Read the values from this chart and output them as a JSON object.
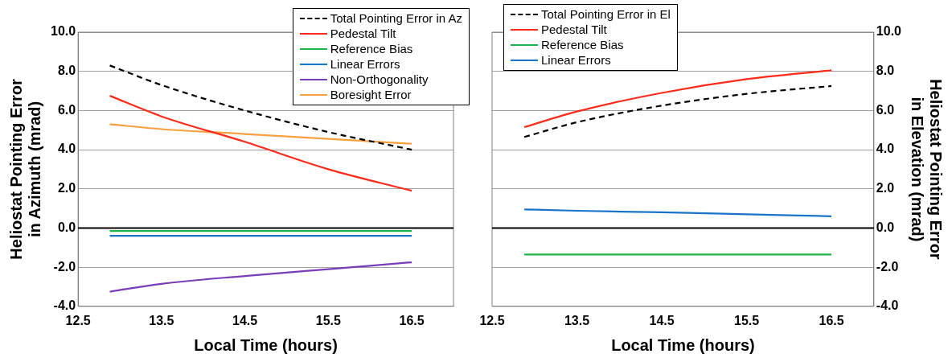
{
  "chart_data": [
    {
      "type": "line",
      "xlabel": "Local Time (hours)",
      "ylabel": "Heliostat Pointing Error\nin Azimuth (mrad)",
      "x": [
        12.88,
        13.5,
        14.5,
        15.5,
        16.5
      ],
      "series": [
        {
          "name": "Total Pointing Error in Az",
          "color": "#000000",
          "line_style": "dashed",
          "values": [
            8.3,
            7.3,
            6.0,
            4.9,
            4.0
          ]
        },
        {
          "name": "Pedestal Tilt",
          "color": "#ff2a1a",
          "values": [
            6.75,
            5.7,
            4.4,
            3.0,
            1.9
          ]
        },
        {
          "name": "Reference Bias",
          "color": "#1db34a",
          "values": [
            -0.15,
            -0.15,
            -0.15,
            -0.15,
            -0.15
          ]
        },
        {
          "name": "Linear Errors",
          "color": "#1a75c9",
          "values": [
            -0.4,
            -0.4,
            -0.4,
            -0.4,
            -0.4
          ]
        },
        {
          "name": "Non-Orthogonality",
          "color": "#7a3db8",
          "values": [
            -3.25,
            -2.85,
            -2.45,
            -2.1,
            -1.75
          ]
        },
        {
          "name": "Boresight Error",
          "color": "#f7a040",
          "values": [
            5.3,
            5.05,
            4.8,
            4.55,
            4.3
          ]
        }
      ],
      "xlim": [
        12.5,
        17.0
      ],
      "xticks": [
        12.5,
        13.5,
        14.5,
        15.5,
        16.5
      ],
      "ylim": [
        -4,
        10
      ],
      "yticks": [
        {
          "value": -4,
          "label": "-4.0"
        },
        {
          "value": -2,
          "label": "-2.0"
        },
        {
          "value": 0,
          "label": "0.0"
        },
        {
          "value": 2,
          "label": "2.0"
        },
        {
          "value": 4,
          "label": "4.0"
        },
        {
          "value": 6,
          "label": "6.0"
        },
        {
          "value": 8,
          "label": "8.0"
        },
        {
          "value": 10,
          "label": "10.0"
        }
      ],
      "ref_lines": [
        {
          "axis": "y",
          "value": 0,
          "color": "#000000"
        }
      ],
      "grid": "y",
      "legend": "top right",
      "marker": "none",
      "line_style": "solid"
    },
    {
      "type": "line",
      "xlabel": "Local Time (hours)",
      "y2label": "Heliostat Pointing Error\nin Elevation (mrad)",
      "x": [
        12.88,
        13.5,
        14.5,
        15.5,
        16.5
      ],
      "series": [
        {
          "name": "Total Pointing Error in El",
          "color": "#000000",
          "line_style": "dashed",
          "axis": "y2",
          "values": [
            4.65,
            5.4,
            6.25,
            6.85,
            7.25
          ]
        },
        {
          "name": "Pedestal Tilt",
          "color": "#ff2a1a",
          "axis": "y2",
          "values": [
            5.15,
            5.95,
            6.9,
            7.6,
            8.05
          ]
        },
        {
          "name": "Reference Bias",
          "color": "#1db34a",
          "axis": "y2",
          "values": [
            -1.35,
            -1.35,
            -1.35,
            -1.35,
            -1.35
          ]
        },
        {
          "name": "Linear Errors",
          "color": "#1a75c9",
          "axis": "y2",
          "values": [
            0.95,
            0.88,
            0.8,
            0.7,
            0.6
          ]
        }
      ],
      "xlim": [
        12.5,
        17.0
      ],
      "xticks": [
        12.5,
        13.5,
        14.5,
        15.5,
        16.5
      ],
      "y2lim": [
        -4,
        10
      ],
      "y2ticks": [
        {
          "value": -4,
          "label": "-4.0"
        },
        {
          "value": -2,
          "label": "-2.0"
        },
        {
          "value": 0,
          "label": "0.0"
        },
        {
          "value": 2,
          "label": "2.0"
        },
        {
          "value": 4,
          "label": "4.0"
        },
        {
          "value": 6,
          "label": "6.0"
        },
        {
          "value": 8,
          "label": "8.0"
        },
        {
          "value": 10,
          "label": "10.0"
        }
      ],
      "ref_lines": [
        {
          "axis": "y2",
          "value": 0,
          "color": "#000000"
        }
      ],
      "grid": "y",
      "legend": "top left",
      "marker": "none",
      "line_style": "solid"
    }
  ]
}
